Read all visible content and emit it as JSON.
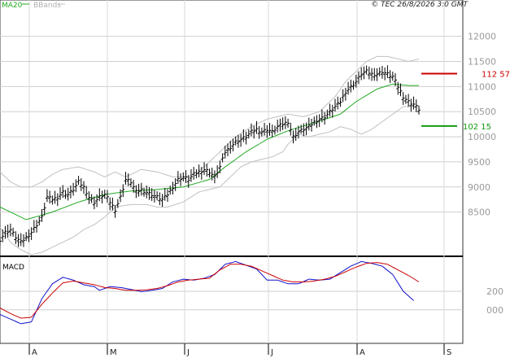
{
  "header": {
    "legend_ma": "MA20",
    "legend_bb": "BBands",
    "copyright": "© TEC 26/8/2026 3:0 GMT",
    "macd_label": "MACD"
  },
  "colors": {
    "ma": "#22aa22",
    "bb": "#c0c0c0",
    "resistance": "#cc0000",
    "support": "#119911",
    "macd_line": "#1111cc",
    "signal_line": "#cc0000",
    "price": "#000000"
  },
  "levels": {
    "resistance": {
      "value": 112.57,
      "label": "112 57"
    },
    "support": {
      "value": 102.15,
      "label": "102 15"
    }
  },
  "chart_data": [
    {
      "type": "line",
      "title": "",
      "ylim": [
        77,
        124
      ],
      "y_ticks": [
        {
          "value": 85,
          "label": "8500"
        },
        {
          "value": 90,
          "label": "9000"
        },
        {
          "value": 95,
          "label": "9500"
        },
        {
          "value": 100,
          "label": "10000"
        },
        {
          "value": 105,
          "label": "10500"
        },
        {
          "value": 110,
          "label": "11000"
        },
        {
          "value": 115,
          "label": "11500"
        },
        {
          "value": 120,
          "label": "12000"
        }
      ],
      "x_ticks": [
        "A",
        "M",
        "J",
        "J",
        "A",
        "S"
      ],
      "grid": true,
      "legend_position": "top-left",
      "price_sample": [
        [
          0,
          79.5
        ],
        [
          2,
          81
        ],
        [
          4,
          81.5
        ],
        [
          6,
          80
        ],
        [
          8,
          79
        ],
        [
          10,
          80
        ],
        [
          12,
          81
        ],
        [
          14,
          82.5
        ],
        [
          16,
          84
        ],
        [
          18,
          88
        ],
        [
          20,
          87.5
        ],
        [
          22,
          88
        ],
        [
          24,
          89
        ],
        [
          26,
          88.5
        ],
        [
          28,
          89.5
        ],
        [
          30,
          91
        ],
        [
          32,
          90
        ],
        [
          34,
          88
        ],
        [
          36,
          87
        ],
        [
          38,
          88
        ],
        [
          40,
          88.5
        ],
        [
          42,
          87
        ],
        [
          44,
          85.5
        ],
        [
          46,
          88
        ],
        [
          48,
          91.5
        ],
        [
          50,
          91
        ],
        [
          52,
          89
        ],
        [
          54,
          89.5
        ],
        [
          56,
          89
        ],
        [
          58,
          88.5
        ],
        [
          60,
          88
        ],
        [
          62,
          87.5
        ],
        [
          64,
          88.5
        ],
        [
          66,
          90
        ],
        [
          68,
          91.5
        ],
        [
          70,
          92
        ],
        [
          72,
          91.5
        ],
        [
          74,
          92.5
        ],
        [
          76,
          93
        ],
        [
          78,
          93.5
        ],
        [
          80,
          93
        ],
        [
          82,
          92
        ],
        [
          84,
          94
        ],
        [
          86,
          97
        ],
        [
          88,
          98
        ],
        [
          90,
          99
        ],
        [
          92,
          99.5
        ],
        [
          94,
          100
        ],
        [
          96,
          101
        ],
        [
          98,
          101.5
        ],
        [
          100,
          101
        ],
        [
          102,
          101.5
        ],
        [
          104,
          101
        ],
        [
          106,
          102
        ],
        [
          108,
          102.5
        ],
        [
          110,
          103
        ],
        [
          112,
          100
        ],
        [
          114,
          101
        ],
        [
          116,
          101.5
        ],
        [
          118,
          102
        ],
        [
          120,
          103
        ],
        [
          122,
          103.5
        ],
        [
          124,
          104
        ],
        [
          126,
          105
        ],
        [
          128,
          106
        ],
        [
          130,
          107
        ],
        [
          132,
          109
        ],
        [
          134,
          110
        ],
        [
          136,
          111
        ],
        [
          138,
          112.5
        ],
        [
          140,
          113
        ],
        [
          142,
          112.5
        ],
        [
          144,
          112.5
        ],
        [
          146,
          113
        ],
        [
          148,
          112.5
        ],
        [
          150,
          112
        ],
        [
          152,
          110
        ],
        [
          154,
          108
        ],
        [
          156,
          107
        ],
        [
          158,
          106.5
        ],
        [
          160,
          105.5
        ]
      ],
      "ma20_sample": [
        [
          0,
          86
        ],
        [
          10,
          83.5
        ],
        [
          20,
          85
        ],
        [
          30,
          87
        ],
        [
          40,
          88.5
        ],
        [
          50,
          89.2
        ],
        [
          60,
          89.5
        ],
        [
          70,
          90
        ],
        [
          80,
          91.5
        ],
        [
          86,
          94
        ],
        [
          94,
          97
        ],
        [
          102,
          99.5
        ],
        [
          110,
          101.2
        ],
        [
          120,
          102.8
        ],
        [
          130,
          104.5
        ],
        [
          136,
          107
        ],
        [
          144,
          109.5
        ],
        [
          150,
          110.5
        ],
        [
          156,
          110.2
        ],
        [
          160,
          110.2
        ]
      ],
      "bb_upper_sample": [
        [
          0,
          93
        ],
        [
          4,
          91
        ],
        [
          8,
          90
        ],
        [
          12,
          90
        ],
        [
          16,
          91
        ],
        [
          20,
          92.5
        ],
        [
          24,
          93.5
        ],
        [
          30,
          94
        ],
        [
          36,
          93
        ],
        [
          40,
          92
        ],
        [
          44,
          93
        ],
        [
          48,
          92
        ],
        [
          54,
          93.5
        ],
        [
          60,
          93
        ],
        [
          66,
          92
        ],
        [
          72,
          92
        ],
        [
          78,
          94
        ],
        [
          82,
          96
        ],
        [
          86,
          98
        ],
        [
          90,
          100
        ],
        [
          96,
          102
        ],
        [
          102,
          103.5
        ],
        [
          106,
          104
        ],
        [
          110,
          104.5
        ],
        [
          116,
          104
        ],
        [
          122,
          105
        ],
        [
          128,
          108
        ],
        [
          132,
          111
        ],
        [
          136,
          113
        ],
        [
          140,
          115
        ],
        [
          144,
          116
        ],
        [
          148,
          116
        ],
        [
          152,
          115.5
        ],
        [
          156,
          115
        ],
        [
          160,
          115.5
        ]
      ],
      "bb_lower_sample": [
        [
          0,
          82
        ],
        [
          4,
          79
        ],
        [
          8,
          77.5
        ],
        [
          12,
          76.5
        ],
        [
          16,
          77
        ],
        [
          20,
          78
        ],
        [
          24,
          79
        ],
        [
          28,
          80
        ],
        [
          32,
          81.5
        ],
        [
          36,
          82.5
        ],
        [
          40,
          84
        ],
        [
          44,
          86
        ],
        [
          50,
          86.5
        ],
        [
          56,
          86.5
        ],
        [
          60,
          86
        ],
        [
          64,
          86
        ],
        [
          70,
          87
        ],
        [
          76,
          89
        ],
        [
          80,
          89.5
        ],
        [
          84,
          90
        ],
        [
          88,
          92
        ],
        [
          92,
          94
        ],
        [
          96,
          95
        ],
        [
          100,
          95.5
        ],
        [
          104,
          96
        ],
        [
          108,
          97
        ],
        [
          110,
          98.5
        ],
        [
          114,
          100.5
        ],
        [
          118,
          100
        ],
        [
          122,
          100.5
        ],
        [
          126,
          101
        ],
        [
          130,
          102
        ],
        [
          134,
          101.5
        ],
        [
          138,
          100.5
        ],
        [
          142,
          101.5
        ],
        [
          146,
          103
        ],
        [
          150,
          104.5
        ],
        [
          154,
          106
        ],
        [
          158,
          106
        ],
        [
          160,
          106
        ]
      ]
    },
    {
      "type": "line",
      "title": "",
      "ylim": [
        -300,
        550
      ],
      "y_ticks": [
        {
          "value": 200,
          "label": "200"
        },
        {
          "value": 0,
          "label": "000"
        }
      ],
      "series": [
        {
          "role": "macd",
          "values": [
            [
              0,
              -50
            ],
            [
              4,
              -100
            ],
            [
              8,
              -150
            ],
            [
              12,
              -130
            ],
            [
              16,
              120
            ],
            [
              20,
              280
            ],
            [
              24,
              350
            ],
            [
              28,
              320
            ],
            [
              32,
              270
            ],
            [
              36,
              250
            ],
            [
              38,
              210
            ],
            [
              42,
              250
            ],
            [
              46,
              240
            ],
            [
              50,
              220
            ],
            [
              54,
              195
            ],
            [
              58,
              210
            ],
            [
              62,
              230
            ],
            [
              66,
              300
            ],
            [
              70,
              330
            ],
            [
              74,
              320
            ],
            [
              78,
              340
            ],
            [
              82,
              380
            ],
            [
              86,
              490
            ],
            [
              90,
              520
            ],
            [
              94,
              480
            ],
            [
              98,
              440
            ],
            [
              102,
              320
            ],
            [
              106,
              320
            ],
            [
              110,
              280
            ],
            [
              114,
              280
            ],
            [
              118,
              330
            ],
            [
              122,
              320
            ],
            [
              126,
              330
            ],
            [
              130,
              400
            ],
            [
              134,
              470
            ],
            [
              138,
              520
            ],
            [
              142,
              500
            ],
            [
              146,
              470
            ],
            [
              150,
              380
            ],
            [
              154,
              200
            ],
            [
              158,
              100
            ]
          ]
        },
        {
          "role": "signal",
          "values": [
            [
              0,
              20
            ],
            [
              4,
              -40
            ],
            [
              8,
              -90
            ],
            [
              12,
              -80
            ],
            [
              16,
              60
            ],
            [
              20,
              180
            ],
            [
              24,
              290
            ],
            [
              28,
              310
            ],
            [
              32,
              290
            ],
            [
              36,
              270
            ],
            [
              40,
              240
            ],
            [
              44,
              230
            ],
            [
              48,
              210
            ],
            [
              52,
              210
            ],
            [
              56,
              215
            ],
            [
              60,
              230
            ],
            [
              64,
              260
            ],
            [
              68,
              300
            ],
            [
              72,
              320
            ],
            [
              76,
              330
            ],
            [
              80,
              340
            ],
            [
              84,
              430
            ],
            [
              88,
              490
            ],
            [
              92,
              490
            ],
            [
              96,
              470
            ],
            [
              100,
              420
            ],
            [
              104,
              370
            ],
            [
              108,
              320
            ],
            [
              112,
              300
            ],
            [
              116,
              300
            ],
            [
              120,
              310
            ],
            [
              124,
              330
            ],
            [
              128,
              360
            ],
            [
              132,
              410
            ],
            [
              136,
              460
            ],
            [
              140,
              500
            ],
            [
              144,
              510
            ],
            [
              148,
              490
            ],
            [
              152,
              430
            ],
            [
              156,
              370
            ],
            [
              160,
              300
            ]
          ]
        }
      ]
    }
  ]
}
